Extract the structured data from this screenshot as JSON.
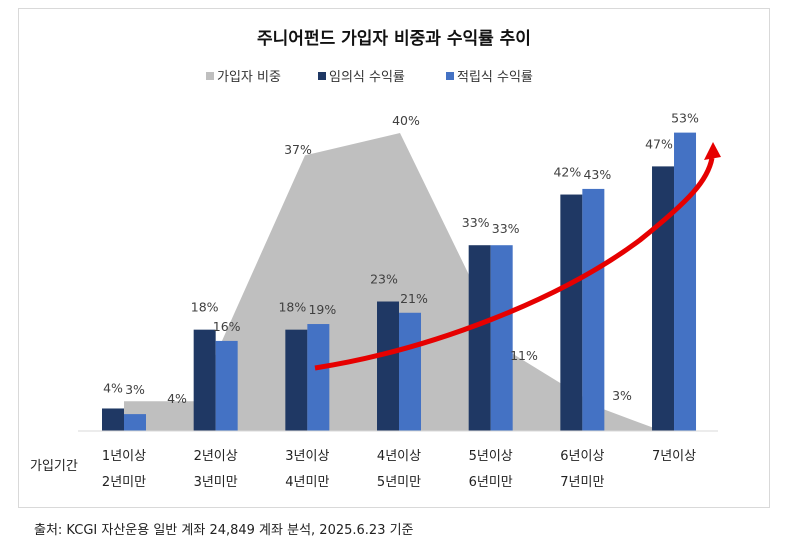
{
  "chart_data": {
    "type": "bar",
    "title": "주니어펀드 가입자 비중과 수익률 추이",
    "xlabel": "가입기간",
    "categories": [
      [
        "1년이상",
        "2년미만"
      ],
      [
        "2년이상",
        "3년미만"
      ],
      [
        "3년이상",
        "4년미만"
      ],
      [
        "4년이상",
        "5년미만"
      ],
      [
        "5년이상",
        "6년미만"
      ],
      [
        "6년이상",
        "7년미만"
      ],
      [
        "7년이상",
        ""
      ]
    ],
    "series": [
      {
        "name": "가입자 비중",
        "type": "area",
        "color": "#bfbfbf",
        "values": [
          4,
          4,
          37,
          40,
          11,
          3,
          0.5
        ],
        "labels": [
          "4%",
          "4%",
          "37%",
          "40%",
          "11%",
          "3%",
          ""
        ]
      },
      {
        "name": "임의식 수익률",
        "type": "bar",
        "color": "#1f3864",
        "values": [
          4,
          18,
          18,
          23,
          33,
          42,
          47
        ],
        "labels": [
          "4%",
          "18%",
          "18%",
          "23%",
          "33%",
          "42%",
          "47%"
        ]
      },
      {
        "name": "적립식 수익률",
        "type": "bar",
        "color": "#4472c4",
        "values": [
          3,
          16,
          19,
          21,
          33,
          43,
          53
        ],
        "labels": [
          "3%",
          "16%",
          "19%",
          "21%",
          "33%",
          "43%",
          "53%"
        ]
      }
    ],
    "legend": "top",
    "grid": false,
    "annotation": "red upward trend arrow",
    "trend_color": "#e60000"
  },
  "source": "출처: KCGI 자산운용  일반  계좌 24,849 계좌  분석, 2025.6.23  기준"
}
